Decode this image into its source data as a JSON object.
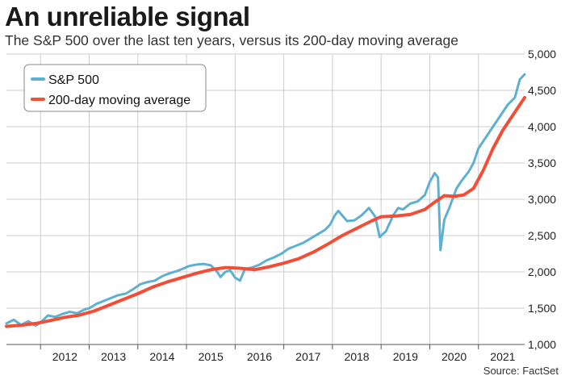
{
  "title": "An unreliable signal",
  "subtitle": "The S&P 500 over the last ten years, versus its 200-day moving average",
  "source": "Source: FactSet",
  "colors": {
    "sp500": "#5fb0d0",
    "ma200": "#f04e37",
    "grid": "#cccccc"
  },
  "chart_data": {
    "type": "line",
    "title": "An unreliable signal",
    "subtitle": "The S&P 500 over the last ten years, versus its 200-day moving average",
    "xlabel": "",
    "ylabel": "",
    "xlim": [
      2011.3,
      2021.95
    ],
    "ylim": [
      1000,
      5000
    ],
    "x_ticks": [
      2012,
      2013,
      2014,
      2015,
      2016,
      2017,
      2018,
      2019,
      2020,
      2021
    ],
    "x_tick_labels": [
      "2012",
      "2013",
      "2014",
      "2015",
      "2016",
      "2017",
      "2018",
      "2019",
      "2020",
      "2021"
    ],
    "y_ticks": [
      1000,
      1500,
      2000,
      2500,
      3000,
      3500,
      4000,
      4500,
      5000
    ],
    "y_tick_labels": [
      "1,000",
      "1,500",
      "2,000",
      "2,500",
      "3,000",
      "3,500",
      "4,000",
      "4,500",
      "5,000"
    ],
    "grid": true,
    "legend_position": "top-left",
    "series": [
      {
        "name": "S&P 500",
        "color": "#5fb0d0",
        "x": [
          2011.3,
          2011.45,
          2011.6,
          2011.75,
          2011.9,
          2012.0,
          2012.15,
          2012.3,
          2012.45,
          2012.6,
          2012.75,
          2012.9,
          2013.0,
          2013.15,
          2013.3,
          2013.45,
          2013.6,
          2013.75,
          2013.9,
          2014.05,
          2014.2,
          2014.35,
          2014.5,
          2014.65,
          2014.8,
          2014.95,
          2015.05,
          2015.2,
          2015.35,
          2015.5,
          2015.62,
          2015.7,
          2015.8,
          2015.9,
          2016.0,
          2016.1,
          2016.2,
          2016.35,
          2016.5,
          2016.65,
          2016.8,
          2016.95,
          2017.1,
          2017.25,
          2017.4,
          2017.55,
          2017.7,
          2017.85,
          2017.95,
          2018.05,
          2018.12,
          2018.3,
          2018.45,
          2018.6,
          2018.75,
          2018.88,
          2018.97,
          2019.1,
          2019.25,
          2019.35,
          2019.45,
          2019.6,
          2019.75,
          2019.9,
          2020.0,
          2020.1,
          2020.17,
          2020.22,
          2020.3,
          2020.4,
          2020.55,
          2020.65,
          2020.8,
          2020.9,
          2021.0,
          2021.15,
          2021.3,
          2021.45,
          2021.6,
          2021.75,
          2021.85,
          2021.95
        ],
        "values": [
          1290,
          1340,
          1270,
          1320,
          1260,
          1300,
          1400,
          1380,
          1420,
          1450,
          1430,
          1480,
          1500,
          1560,
          1600,
          1640,
          1680,
          1700,
          1760,
          1830,
          1860,
          1880,
          1940,
          1980,
          2010,
          2050,
          2080,
          2100,
          2110,
          2090,
          2010,
          1930,
          2000,
          2020,
          1920,
          1880,
          2040,
          2060,
          2100,
          2160,
          2200,
          2250,
          2320,
          2360,
          2400,
          2460,
          2520,
          2580,
          2650,
          2780,
          2840,
          2700,
          2710,
          2780,
          2880,
          2760,
          2480,
          2560,
          2780,
          2880,
          2860,
          2940,
          2970,
          3060,
          3240,
          3360,
          3300,
          2300,
          2720,
          2880,
          3150,
          3250,
          3380,
          3500,
          3700,
          3850,
          4000,
          4150,
          4300,
          4400,
          4650,
          4720
        ]
      },
      {
        "name": "200-day moving average",
        "color": "#f04e37",
        "x": [
          2011.3,
          2011.6,
          2011.9,
          2012.2,
          2012.5,
          2012.8,
          2013.1,
          2013.4,
          2013.7,
          2014.0,
          2014.3,
          2014.6,
          2014.9,
          2015.2,
          2015.5,
          2015.8,
          2016.1,
          2016.4,
          2016.7,
          2017.0,
          2017.3,
          2017.6,
          2017.9,
          2018.2,
          2018.5,
          2018.8,
          2019.0,
          2019.3,
          2019.6,
          2019.9,
          2020.1,
          2020.3,
          2020.5,
          2020.7,
          2020.9,
          2021.1,
          2021.3,
          2021.5,
          2021.7,
          2021.95
        ],
        "values": [
          1250,
          1265,
          1290,
          1330,
          1375,
          1405,
          1460,
          1540,
          1620,
          1700,
          1790,
          1860,
          1920,
          1980,
          2030,
          2060,
          2050,
          2030,
          2070,
          2120,
          2180,
          2270,
          2380,
          2500,
          2600,
          2700,
          2760,
          2770,
          2790,
          2860,
          2960,
          3050,
          3040,
          3060,
          3150,
          3400,
          3700,
          3950,
          4150,
          4400
        ]
      }
    ]
  }
}
